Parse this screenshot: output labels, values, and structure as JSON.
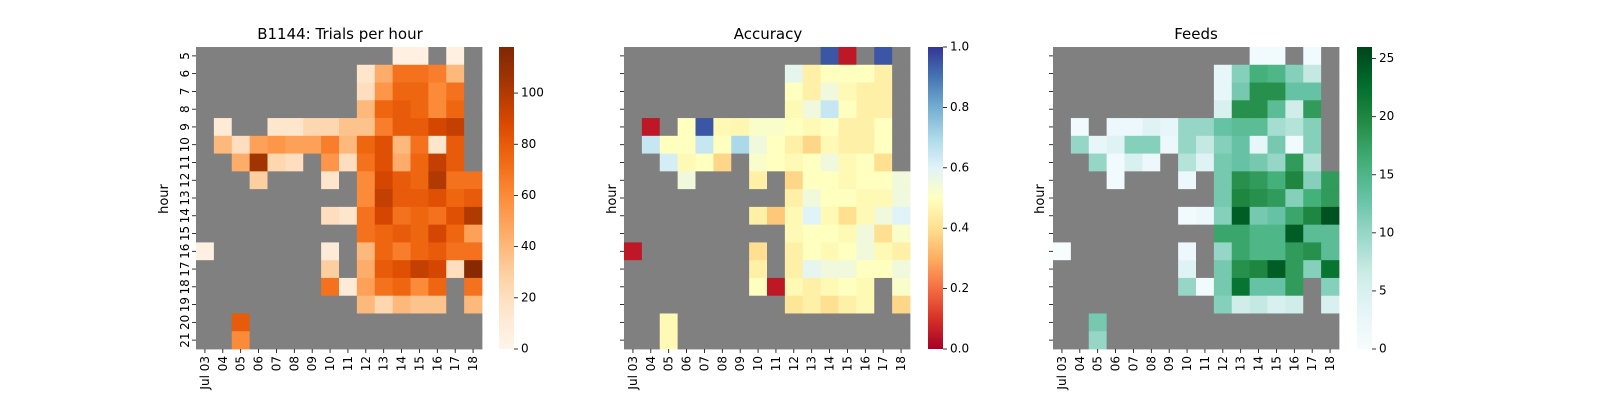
{
  "chart_data": [
    {
      "type": "heatmap",
      "title": "B1144: Trials per hour",
      "xlabel": "",
      "ylabel": "hour",
      "x": [
        "Jul 03",
        "04",
        "05",
        "06",
        "07",
        "08",
        "09",
        "10",
        "11",
        "12",
        "13",
        "14",
        "15",
        "16",
        "17",
        "18"
      ],
      "y": [
        "5",
        "6",
        "7",
        "8",
        "9",
        "10",
        "11",
        "12",
        "13",
        "14",
        "15",
        "16",
        "17",
        "18",
        "19",
        "20",
        "21"
      ],
      "colormap": "Oranges",
      "missing_color": "#808080",
      "vmin": 0,
      "vmax": 118,
      "colorbar_ticks": [
        "0",
        "20",
        "40",
        "60",
        "80",
        "100"
      ],
      "values": [
        [
          null,
          null,
          null,
          null,
          null,
          null,
          null,
          null,
          null,
          null,
          null,
          5,
          5,
          null,
          5,
          null
        ],
        [
          null,
          null,
          null,
          null,
          null,
          null,
          null,
          null,
          null,
          15,
          45,
          70,
          70,
          65,
          40,
          null
        ],
        [
          null,
          null,
          null,
          null,
          null,
          null,
          null,
          null,
          null,
          20,
          55,
          75,
          75,
          60,
          70,
          null
        ],
        [
          null,
          null,
          null,
          null,
          null,
          null,
          null,
          null,
          null,
          40,
          75,
          80,
          75,
          60,
          75,
          null
        ],
        [
          null,
          10,
          null,
          null,
          15,
          15,
          25,
          25,
          35,
          35,
          65,
          80,
          80,
          90,
          95,
          null
        ],
        [
          null,
          40,
          20,
          50,
          55,
          50,
          50,
          65,
          40,
          75,
          85,
          40,
          70,
          15,
          80,
          null
        ],
        [
          null,
          null,
          45,
          105,
          25,
          20,
          null,
          55,
          20,
          70,
          85,
          45,
          75,
          95,
          80,
          null
        ],
        [
          null,
          null,
          null,
          30,
          null,
          null,
          null,
          15,
          null,
          60,
          90,
          80,
          75,
          100,
          70,
          70
        ],
        [
          null,
          null,
          null,
          null,
          null,
          null,
          null,
          null,
          null,
          60,
          95,
          80,
          80,
          85,
          75,
          80
        ],
        [
          null,
          null,
          null,
          null,
          null,
          null,
          null,
          20,
          15,
          70,
          90,
          70,
          75,
          70,
          85,
          100
        ],
        [
          null,
          null,
          null,
          null,
          null,
          null,
          null,
          null,
          null,
          70,
          75,
          80,
          75,
          90,
          75,
          50
        ],
        [
          5,
          null,
          null,
          null,
          null,
          null,
          null,
          10,
          null,
          40,
          75,
          65,
          75,
          80,
          70,
          70
        ],
        [
          null,
          null,
          null,
          null,
          null,
          null,
          null,
          30,
          null,
          45,
          80,
          85,
          95,
          90,
          20,
          115
        ],
        [
          null,
          null,
          null,
          null,
          null,
          null,
          null,
          70,
          10,
          50,
          70,
          75,
          60,
          75,
          null,
          70
        ],
        [
          null,
          null,
          null,
          null,
          null,
          null,
          null,
          null,
          null,
          40,
          25,
          40,
          35,
          35,
          null,
          40
        ],
        [
          null,
          null,
          80,
          null,
          null,
          null,
          null,
          null,
          null,
          null,
          null,
          null,
          null,
          null,
          null,
          null
        ],
        [
          null,
          null,
          60,
          null,
          null,
          null,
          null,
          null,
          null,
          null,
          null,
          null,
          null,
          null,
          null,
          null
        ]
      ]
    },
    {
      "type": "heatmap",
      "title": "Accuracy",
      "xlabel": "",
      "ylabel": "hour",
      "x": [
        "Jul 03",
        "04",
        "05",
        "06",
        "07",
        "08",
        "09",
        "10",
        "11",
        "12",
        "13",
        "14",
        "15",
        "16",
        "17",
        "18"
      ],
      "y": [
        "5",
        "6",
        "7",
        "8",
        "9",
        "10",
        "11",
        "12",
        "13",
        "14",
        "15",
        "16",
        "17",
        "18",
        "19",
        "20",
        "21"
      ],
      "colormap": "RdYlBu",
      "missing_color": "#808080",
      "vmin": 0,
      "vmax": 1,
      "colorbar_ticks": [
        "0.0",
        "0.2",
        "0.4",
        "0.6",
        "0.8",
        "1.0"
      ],
      "values": [
        [
          null,
          null,
          null,
          null,
          null,
          null,
          null,
          null,
          null,
          null,
          null,
          0.95,
          0.05,
          null,
          0.95,
          null
        ],
        [
          null,
          null,
          null,
          null,
          null,
          null,
          null,
          null,
          null,
          0.58,
          0.45,
          0.5,
          0.5,
          0.5,
          0.45,
          null
        ],
        [
          null,
          null,
          null,
          null,
          null,
          null,
          null,
          null,
          null,
          0.5,
          0.45,
          0.55,
          0.48,
          0.45,
          0.45,
          null
        ],
        [
          null,
          null,
          null,
          null,
          null,
          null,
          null,
          null,
          null,
          0.48,
          0.55,
          0.65,
          0.5,
          0.45,
          0.45,
          null
        ],
        [
          null,
          0.05,
          null,
          0.5,
          0.95,
          0.48,
          0.47,
          0.52,
          0.52,
          0.5,
          0.48,
          0.5,
          0.45,
          0.45,
          0.5,
          null
        ],
        [
          null,
          0.65,
          0.5,
          0.5,
          0.65,
          0.5,
          0.7,
          0.55,
          0.5,
          0.45,
          0.38,
          0.48,
          0.45,
          0.45,
          0.5,
          null
        ],
        [
          null,
          null,
          0.62,
          0.48,
          0.5,
          0.38,
          null,
          0.52,
          0.5,
          0.48,
          0.5,
          0.55,
          0.48,
          0.5,
          0.4,
          null
        ],
        [
          null,
          null,
          null,
          0.55,
          null,
          null,
          null,
          0.45,
          null,
          0.38,
          0.5,
          0.5,
          0.48,
          0.5,
          0.5,
          0.55
        ],
        [
          null,
          null,
          null,
          null,
          null,
          null,
          null,
          null,
          null,
          0.45,
          0.55,
          0.5,
          0.5,
          0.48,
          0.48,
          0.55
        ],
        [
          null,
          null,
          null,
          null,
          null,
          null,
          null,
          0.45,
          0.35,
          0.48,
          0.6,
          0.48,
          0.4,
          0.48,
          0.55,
          0.6
        ],
        [
          null,
          null,
          null,
          null,
          null,
          null,
          null,
          null,
          null,
          0.48,
          0.5,
          0.5,
          0.48,
          0.55,
          0.4,
          0.52
        ],
        [
          0.05,
          null,
          null,
          null,
          null,
          null,
          null,
          0.4,
          null,
          0.45,
          0.5,
          0.48,
          0.5,
          0.55,
          0.48,
          0.45
        ],
        [
          null,
          null,
          null,
          null,
          null,
          null,
          null,
          0.45,
          null,
          0.45,
          0.58,
          0.55,
          0.55,
          0.5,
          0.5,
          0.55
        ],
        [
          null,
          null,
          null,
          null,
          null,
          null,
          null,
          0.5,
          0.05,
          0.48,
          0.45,
          0.48,
          0.5,
          0.48,
          null,
          0.52
        ],
        [
          null,
          null,
          null,
          null,
          null,
          null,
          null,
          null,
          null,
          0.42,
          0.45,
          0.4,
          0.45,
          0.48,
          null,
          0.38
        ],
        [
          null,
          null,
          0.48,
          null,
          null,
          null,
          null,
          null,
          null,
          null,
          null,
          null,
          null,
          null,
          null,
          null
        ],
        [
          null,
          null,
          0.48,
          null,
          null,
          null,
          null,
          null,
          null,
          null,
          null,
          null,
          null,
          null,
          null,
          null
        ]
      ]
    },
    {
      "type": "heatmap",
      "title": "Feeds",
      "xlabel": "",
      "ylabel": "hour",
      "x": [
        "Jul 03",
        "04",
        "05",
        "06",
        "07",
        "08",
        "09",
        "10",
        "11",
        "12",
        "13",
        "14",
        "15",
        "16",
        "17",
        "18"
      ],
      "y": [
        "5",
        "6",
        "7",
        "8",
        "9",
        "10",
        "11",
        "12",
        "13",
        "14",
        "15",
        "16",
        "17",
        "18",
        "19",
        "20",
        "21"
      ],
      "colormap": "BuGn",
      "missing_color": "#808080",
      "vmin": 0,
      "vmax": 26,
      "colorbar_ticks": [
        "0",
        "5",
        "10",
        "15",
        "20",
        "25"
      ],
      "values": [
        [
          null,
          null,
          null,
          null,
          null,
          null,
          null,
          null,
          null,
          null,
          null,
          1,
          1,
          null,
          1,
          null
        ],
        [
          null,
          null,
          null,
          null,
          null,
          null,
          null,
          null,
          null,
          3,
          11,
          16,
          15,
          11,
          7,
          null
        ],
        [
          null,
          null,
          null,
          null,
          null,
          null,
          null,
          null,
          null,
          3,
          12,
          19,
          19,
          13,
          13,
          null
        ],
        [
          null,
          null,
          null,
          null,
          null,
          null,
          null,
          null,
          null,
          5,
          19,
          19,
          14,
          6,
          18,
          null
        ],
        [
          null,
          1,
          null,
          2,
          2,
          4,
          3,
          10,
          10,
          13,
          14,
          14,
          9,
          8,
          11,
          null
        ],
        [
          null,
          10,
          3,
          4,
          11,
          11,
          2,
          10,
          7,
          11,
          13,
          3,
          12,
          1,
          11,
          null
        ],
        [
          null,
          null,
          10,
          1,
          5,
          2,
          null,
          8,
          4,
          12,
          13,
          12,
          10,
          18,
          8,
          null
        ],
        [
          null,
          null,
          null,
          1,
          null,
          null,
          null,
          2,
          null,
          12,
          19,
          18,
          16,
          20,
          11,
          18
        ],
        [
          null,
          null,
          null,
          null,
          null,
          null,
          null,
          null,
          null,
          12,
          20,
          19,
          18,
          11,
          16,
          18
        ],
        [
          null,
          null,
          null,
          null,
          null,
          null,
          null,
          1,
          2,
          11,
          24,
          12,
          13,
          17,
          20,
          25
        ],
        [
          null,
          null,
          null,
          null,
          null,
          null,
          null,
          null,
          null,
          17,
          17,
          15,
          15,
          24,
          14,
          14
        ],
        [
          0,
          null,
          null,
          null,
          null,
          null,
          null,
          2,
          null,
          10,
          17,
          15,
          15,
          18,
          19,
          14
        ],
        [
          null,
          null,
          null,
          null,
          null,
          null,
          null,
          4,
          null,
          12,
          19,
          20,
          24,
          18,
          11,
          22
        ],
        [
          null,
          null,
          null,
          null,
          null,
          null,
          null,
          10,
          1,
          12,
          22,
          13,
          13,
          18,
          null,
          11
        ],
        [
          null,
          null,
          null,
          null,
          null,
          null,
          null,
          null,
          null,
          11,
          6,
          7,
          5,
          6,
          null,
          5
        ],
        [
          null,
          null,
          12,
          null,
          null,
          null,
          null,
          null,
          null,
          null,
          null,
          null,
          null,
          null,
          null,
          null
        ],
        [
          null,
          null,
          10,
          null,
          null,
          null,
          null,
          null,
          null,
          null,
          null,
          null,
          null,
          null,
          null,
          null
        ]
      ]
    }
  ]
}
